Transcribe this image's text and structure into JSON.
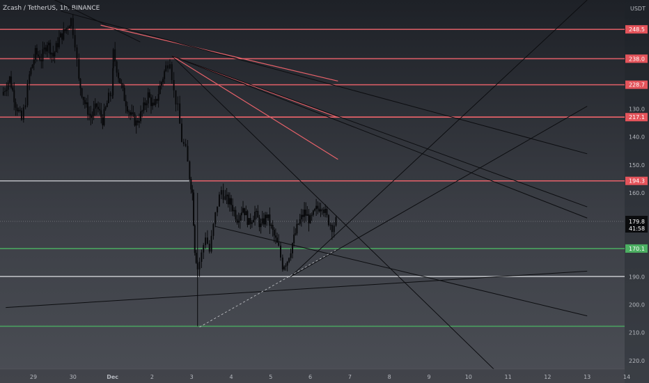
{
  "header": {
    "symbol_title": "Zcash / TetherUS, 1h, BINANCE",
    "currency": "USDT"
  },
  "price_axis": {
    "ticks": [
      "220.0",
      "210.0",
      "200.0",
      "190.0",
      "160.0",
      "150.0",
      "140.0",
      "130.0"
    ]
  },
  "time_axis": {
    "ticks": [
      "29",
      "30",
      "Dec",
      "2",
      "3",
      "4",
      "5",
      "6",
      "7",
      "8",
      "9",
      "10",
      "11",
      "12",
      "13",
      "14"
    ]
  },
  "current_price": {
    "price": "179.8",
    "countdown": "41:58"
  },
  "colors": {
    "background_top": "#1e2127",
    "background_bottom": "#4b4e55",
    "red_line": "#e8626a",
    "red_badge": "#e4545b",
    "green_line": "#4caf62",
    "green_badge": "#4caf62",
    "grey_line": "#c9cbcf",
    "trend_line": "#0c0d10",
    "candle": "#08090b"
  },
  "chart_data": {
    "type": "candlestick",
    "title": "Zcash / TetherUS, 1h, BINANCE",
    "ylabel": "USDT",
    "ylim": [
      122,
      259
    ],
    "x_categories": [
      "29",
      "30",
      "Dec",
      "2",
      "3",
      "4",
      "5",
      "6",
      "7",
      "8",
      "9",
      "10",
      "11",
      "12",
      "13",
      "14"
    ],
    "y_ticks": [
      130,
      140,
      150,
      160,
      190,
      200,
      210,
      220
    ],
    "last_price": 179.8,
    "candle_close_path": [
      [
        -0.8,
        225
      ],
      [
        -0.6,
        231
      ],
      [
        -0.45,
        222
      ],
      [
        -0.3,
        216
      ],
      [
        -0.2,
        223
      ],
      [
        -0.1,
        232
      ],
      [
        0.05,
        240
      ],
      [
        0.2,
        238
      ],
      [
        0.35,
        244
      ],
      [
        0.5,
        239
      ],
      [
        0.65,
        245
      ],
      [
        0.8,
        248
      ],
      [
        0.95,
        252
      ],
      [
        1.05,
        244
      ],
      [
        1.15,
        230
      ],
      [
        1.3,
        222
      ],
      [
        1.45,
        217
      ],
      [
        1.6,
        221
      ],
      [
        1.75,
        216
      ],
      [
        1.9,
        224
      ],
      [
        2.0,
        226
      ],
      [
        2.02,
        240
      ],
      [
        2.15,
        232
      ],
      [
        2.3,
        224
      ],
      [
        2.45,
        218
      ],
      [
        2.6,
        215
      ],
      [
        2.75,
        219
      ],
      [
        2.9,
        225
      ],
      [
        3.05,
        220
      ],
      [
        3.2,
        228
      ],
      [
        3.35,
        235
      ],
      [
        3.45,
        238
      ],
      [
        3.55,
        226
      ],
      [
        3.65,
        220
      ],
      [
        3.75,
        209
      ],
      [
        3.85,
        205
      ],
      [
        3.95,
        196
      ],
      [
        4.02,
        190
      ],
      [
        4.08,
        170
      ],
      [
        4.15,
        163
      ],
      [
        4.25,
        168
      ],
      [
        4.35,
        175
      ],
      [
        4.45,
        169
      ],
      [
        4.55,
        178
      ],
      [
        4.65,
        186
      ],
      [
        4.75,
        191
      ],
      [
        4.85,
        188
      ],
      [
        5.0,
        186
      ],
      [
        5.15,
        181
      ],
      [
        5.3,
        185
      ],
      [
        5.45,
        179
      ],
      [
        5.6,
        183
      ],
      [
        5.75,
        178
      ],
      [
        5.9,
        182
      ],
      [
        6.05,
        176
      ],
      [
        6.2,
        170
      ],
      [
        6.3,
        164
      ],
      [
        6.42,
        166
      ],
      [
        6.55,
        172
      ],
      [
        6.7,
        179
      ],
      [
        6.85,
        183
      ],
      [
        7.0,
        180
      ],
      [
        7.15,
        184
      ],
      [
        7.3,
        186
      ],
      [
        7.42,
        181
      ],
      [
        7.55,
        178
      ],
      [
        7.65,
        179.8
      ]
    ],
    "horizontal_levels": [
      {
        "price": 248.5,
        "color": "red",
        "label": "248.5"
      },
      {
        "price": 238.0,
        "color": "red",
        "label": "238.0"
      },
      {
        "price": 228.7,
        "color": "red",
        "label": "228.7"
      },
      {
        "price": 217.1,
        "color": "red",
        "label": "217.1"
      },
      {
        "price": 194.3,
        "color": "red",
        "label": "194.3"
      },
      {
        "price": 170.1,
        "color": "green",
        "label": "170.1"
      },
      {
        "price": 160.1,
        "color": "grey",
        "label": ""
      },
      {
        "price": 142.3,
        "color": "green",
        "label": ""
      }
    ],
    "trend_lines": [
      {
        "from": [
          0.4,
          260
        ],
        "to": [
          2.7,
          244
        ],
        "color": "dark"
      },
      {
        "from": [
          1.7,
          250
        ],
        "to": [
          7.7,
          230
        ],
        "color": "red"
      },
      {
        "from": [
          3.5,
          239
        ],
        "to": [
          7.7,
          217
        ],
        "color": "red"
      },
      {
        "from": [
          3.5,
          239
        ],
        "to": [
          7.7,
          202
        ],
        "color": "red"
      },
      {
        "from": [
          0.7,
          255
        ],
        "to": [
          14.0,
          204
        ],
        "color": "dark"
      },
      {
        "from": [
          3.5,
          239
        ],
        "to": [
          14.0,
          181
        ],
        "color": "dark"
      },
      {
        "from": [
          3.5,
          239
        ],
        "to": [
          14.0,
          185
        ],
        "color": "dark"
      },
      {
        "from": [
          3.5,
          239
        ],
        "to": [
          12.0,
          122
        ],
        "color": "dark"
      },
      {
        "from": [
          6.5,
          160
        ],
        "to": [
          14.0,
          259
        ],
        "color": "dark"
      },
      {
        "from": [
          4.6,
          178
        ],
        "to": [
          14.0,
          146
        ],
        "color": "dark"
      },
      {
        "from": [
          6.5,
          160
        ],
        "to": [
          14.0,
          221
        ],
        "color": "dark"
      },
      {
        "from": [
          -0.7,
          149
        ],
        "to": [
          14.0,
          162
        ],
        "color": "dark"
      },
      {
        "from": [
          4.2,
          142
        ],
        "to": [
          7.7,
          170
        ],
        "color": "dashed"
      }
    ]
  }
}
